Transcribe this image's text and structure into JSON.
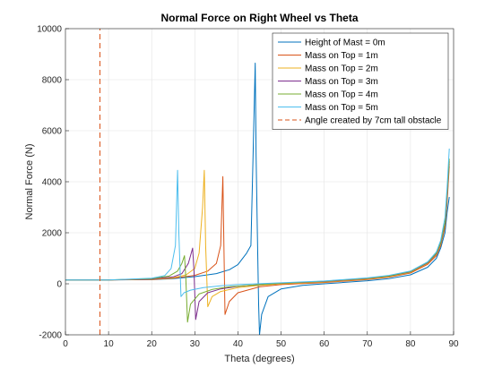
{
  "chart_data": {
    "type": "line",
    "title": "Normal Force on Right Wheel vs Theta",
    "xlabel": "Theta (degrees)",
    "ylabel": "Normal Force (N)",
    "xlim": [
      0,
      90
    ],
    "ylim": [
      -2000,
      10000
    ],
    "xticks": [
      0,
      10,
      20,
      30,
      40,
      50,
      60,
      70,
      80,
      90
    ],
    "yticks": [
      -2000,
      0,
      2000,
      4000,
      6000,
      8000,
      10000
    ],
    "grid": true,
    "legend_position": "top-right",
    "series": [
      {
        "name": "Height of Mast = 0m",
        "color": "#0072BD",
        "points": [
          [
            0,
            150
          ],
          [
            10,
            150
          ],
          [
            20,
            160
          ],
          [
            25,
            200
          ],
          [
            30,
            280
          ],
          [
            35,
            400
          ],
          [
            38,
            550
          ],
          [
            40,
            750
          ],
          [
            42,
            1200
          ],
          [
            43,
            1500
          ],
          [
            43.5,
            5000
          ],
          [
            44,
            8650
          ],
          [
            44.2,
            5000
          ],
          [
            44.5,
            2000
          ],
          [
            44.8,
            -800
          ],
          [
            45,
            -2000
          ],
          [
            45.5,
            -1200
          ],
          [
            47,
            -500
          ],
          [
            50,
            -200
          ],
          [
            55,
            -60
          ],
          [
            60,
            0
          ],
          [
            70,
            120
          ],
          [
            75,
            200
          ],
          [
            80,
            350
          ],
          [
            84,
            650
          ],
          [
            86,
            1000
          ],
          [
            87,
            1400
          ],
          [
            88,
            2000
          ],
          [
            88.5,
            2800
          ],
          [
            89,
            3400
          ]
        ]
      },
      {
        "name": "Mass on Top = 1m",
        "color": "#D95319",
        "points": [
          [
            0,
            150
          ],
          [
            10,
            150
          ],
          [
            20,
            170
          ],
          [
            25,
            220
          ],
          [
            30,
            330
          ],
          [
            33,
            500
          ],
          [
            35,
            800
          ],
          [
            36,
            1500
          ],
          [
            36.5,
            4200
          ],
          [
            36.8,
            1000
          ],
          [
            37,
            -1200
          ],
          [
            38,
            -700
          ],
          [
            40,
            -350
          ],
          [
            45,
            -120
          ],
          [
            50,
            -30
          ],
          [
            60,
            50
          ],
          [
            70,
            170
          ],
          [
            75,
            260
          ],
          [
            80,
            420
          ],
          [
            84,
            760
          ],
          [
            86,
            1100
          ],
          [
            87,
            1500
          ],
          [
            88,
            2200
          ],
          [
            88.5,
            3200
          ],
          [
            89,
            4600
          ]
        ]
      },
      {
        "name": "Mass on Top = 2m",
        "color": "#EDB120",
        "points": [
          [
            0,
            150
          ],
          [
            10,
            150
          ],
          [
            20,
            180
          ],
          [
            25,
            240
          ],
          [
            28,
            350
          ],
          [
            30,
            600
          ],
          [
            31,
            1200
          ],
          [
            31.8,
            3000
          ],
          [
            32.2,
            4450
          ],
          [
            32.5,
            1500
          ],
          [
            33,
            -900
          ],
          [
            34,
            -500
          ],
          [
            36,
            -300
          ],
          [
            40,
            -150
          ],
          [
            45,
            -60
          ],
          [
            50,
            0
          ],
          [
            60,
            70
          ],
          [
            70,
            190
          ],
          [
            75,
            280
          ],
          [
            80,
            450
          ],
          [
            84,
            800
          ],
          [
            86,
            1150
          ],
          [
            87,
            1550
          ],
          [
            88,
            2300
          ],
          [
            88.5,
            3400
          ],
          [
            89,
            4700
          ]
        ]
      },
      {
        "name": "Mass on Top = 3m",
        "color": "#7E2F8E",
        "points": [
          [
            0,
            150
          ],
          [
            10,
            150
          ],
          [
            20,
            190
          ],
          [
            25,
            270
          ],
          [
            27,
            400
          ],
          [
            28.5,
            800
          ],
          [
            29.5,
            1400
          ],
          [
            29.8,
            500
          ],
          [
            30.2,
            -1400
          ],
          [
            31,
            -700
          ],
          [
            33,
            -350
          ],
          [
            36,
            -200
          ],
          [
            40,
            -100
          ],
          [
            45,
            -30
          ],
          [
            50,
            20
          ],
          [
            60,
            90
          ],
          [
            70,
            210
          ],
          [
            75,
            300
          ],
          [
            80,
            470
          ],
          [
            84,
            820
          ],
          [
            86,
            1180
          ],
          [
            87,
            1600
          ],
          [
            88,
            2350
          ],
          [
            88.5,
            3500
          ],
          [
            89,
            4800
          ]
        ]
      },
      {
        "name": "Mass on Top = 4m",
        "color": "#77AC30",
        "points": [
          [
            0,
            150
          ],
          [
            10,
            150
          ],
          [
            20,
            200
          ],
          [
            24,
            300
          ],
          [
            26,
            500
          ],
          [
            27,
            800
          ],
          [
            27.6,
            1100
          ],
          [
            27.9,
            300
          ],
          [
            28.3,
            -1500
          ],
          [
            29,
            -800
          ],
          [
            31,
            -400
          ],
          [
            34,
            -220
          ],
          [
            38,
            -120
          ],
          [
            45,
            -30
          ],
          [
            50,
            20
          ],
          [
            60,
            100
          ],
          [
            70,
            220
          ],
          [
            75,
            310
          ],
          [
            80,
            480
          ],
          [
            84,
            840
          ],
          [
            86,
            1200
          ],
          [
            87,
            1620
          ],
          [
            88,
            2400
          ],
          [
            88.5,
            3600
          ],
          [
            89,
            4900
          ]
        ]
      },
      {
        "name": "Mass on Top = 5m",
        "color": "#4DBEEE",
        "points": [
          [
            0,
            150
          ],
          [
            10,
            150
          ],
          [
            20,
            220
          ],
          [
            23,
            320
          ],
          [
            24.5,
            600
          ],
          [
            25.5,
            1500
          ],
          [
            26,
            4450
          ],
          [
            26.3,
            2000
          ],
          [
            26.8,
            -500
          ],
          [
            27.5,
            -350
          ],
          [
            29,
            -250
          ],
          [
            32,
            -150
          ],
          [
            36,
            -80
          ],
          [
            40,
            -30
          ],
          [
            50,
            40
          ],
          [
            60,
            110
          ],
          [
            70,
            230
          ],
          [
            75,
            330
          ],
          [
            80,
            500
          ],
          [
            84,
            860
          ],
          [
            86,
            1250
          ],
          [
            87,
            1700
          ],
          [
            88,
            2600
          ],
          [
            88.5,
            3800
          ],
          [
            89,
            5300
          ]
        ]
      },
      {
        "name": "Angle created by 7cm tall obstacle",
        "color": "#D95319",
        "dashed": true,
        "points": [
          [
            8,
            -2000
          ],
          [
            8,
            10000
          ]
        ]
      }
    ]
  }
}
